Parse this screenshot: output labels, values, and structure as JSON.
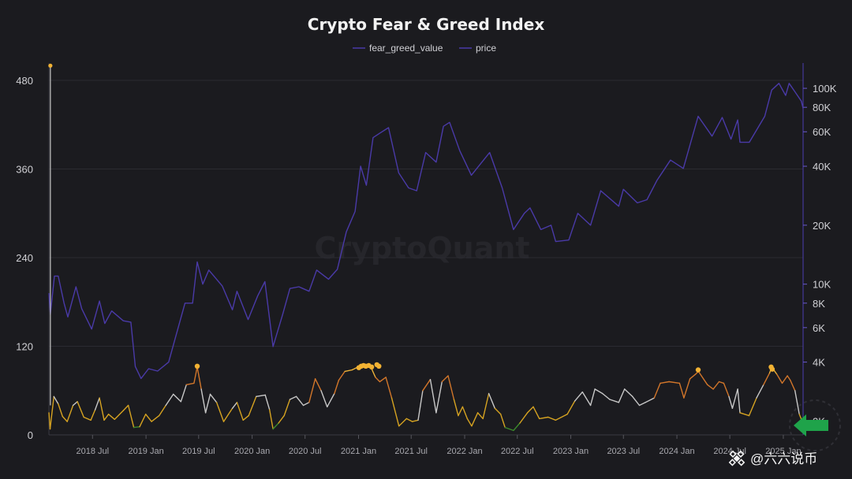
{
  "chart_data": {
    "type": "line",
    "title": "Crypto Fear & Greed Index",
    "watermark": "CryptoQuant",
    "legend": {
      "placement": "top-center"
    },
    "series": [
      {
        "name": "fear_greed_value",
        "axis": "left",
        "color_scale": [
          "#3c8a2c",
          "#d6a321",
          "#c8c8c8",
          "#d2762a",
          "#f0b53a"
        ]
      },
      {
        "name": "price",
        "axis": "right",
        "color": "#4a3aa8"
      }
    ],
    "left_axis": {
      "ticks": [
        "0",
        "120",
        "240",
        "360",
        "480"
      ],
      "ylim": [
        0,
        495
      ]
    },
    "right_axis": {
      "scale": "log",
      "ticks": [
        "2K",
        "4K",
        "6K",
        "8K",
        "10K",
        "20K",
        "40K",
        "60K",
        "80K",
        "100K"
      ],
      "ylim": [
        1700,
        125000
      ]
    },
    "x_axis": {
      "xlim": [
        "2018-02-01",
        "2025-03-10"
      ],
      "ticks": [
        "2018 Jul",
        "2019 Jan",
        "2019 Jul",
        "2020 Jan",
        "2020 Jul",
        "2021 Jan",
        "2021 Jul",
        "2022 Jan",
        "2022 Jul",
        "2023 Jan",
        "2023 Jul",
        "2024 Jan",
        "2024 Jul",
        "2025 Jan"
      ]
    },
    "price_points": [
      [
        "2018-02-01",
        9000
      ],
      [
        "2018-02-06",
        7000
      ],
      [
        "2018-02-20",
        11000
      ],
      [
        "2018-03-05",
        11000
      ],
      [
        "2018-03-25",
        8000
      ],
      [
        "2018-04-07",
        6800
      ],
      [
        "2018-05-05",
        9700
      ],
      [
        "2018-05-25",
        7500
      ],
      [
        "2018-06-28",
        5900
      ],
      [
        "2018-07-25",
        8200
      ],
      [
        "2018-08-12",
        6300
      ],
      [
        "2018-09-05",
        7300
      ],
      [
        "2018-10-15",
        6500
      ],
      [
        "2018-11-10",
        6400
      ],
      [
        "2018-11-25",
        3800
      ],
      [
        "2018-12-15",
        3300
      ],
      [
        "2019-01-10",
        3700
      ],
      [
        "2019-02-10",
        3600
      ],
      [
        "2019-03-20",
        4000
      ],
      [
        "2019-04-10",
        5200
      ],
      [
        "2019-05-15",
        8000
      ],
      [
        "2019-06-10",
        8000
      ],
      [
        "2019-06-26",
        13000
      ],
      [
        "2019-07-15",
        10000
      ],
      [
        "2019-08-05",
        11800
      ],
      [
        "2019-09-20",
        9800
      ],
      [
        "2019-10-25",
        7400
      ],
      [
        "2019-11-10",
        9200
      ],
      [
        "2019-12-18",
        6600
      ],
      [
        "2020-01-20",
        8700
      ],
      [
        "2020-02-14",
        10300
      ],
      [
        "2020-03-13",
        4800
      ],
      [
        "2020-04-15",
        7000
      ],
      [
        "2020-05-10",
        9500
      ],
      [
        "2020-06-10",
        9700
      ],
      [
        "2020-07-15",
        9200
      ],
      [
        "2020-08-10",
        11800
      ],
      [
        "2020-09-20",
        10600
      ],
      [
        "2020-10-20",
        11900
      ],
      [
        "2020-11-20",
        18500
      ],
      [
        "2020-12-20",
        23500
      ],
      [
        "2021-01-08",
        40000
      ],
      [
        "2021-01-28",
        32000
      ],
      [
        "2021-02-20",
        56000
      ],
      [
        "2021-03-15",
        59000
      ],
      [
        "2021-04-14",
        63000
      ],
      [
        "2021-05-19",
        37000
      ],
      [
        "2021-06-22",
        31000
      ],
      [
        "2021-07-20",
        30000
      ],
      [
        "2021-08-20",
        47000
      ],
      [
        "2021-09-25",
        42000
      ],
      [
        "2021-10-20",
        64000
      ],
      [
        "2021-11-10",
        67000
      ],
      [
        "2021-12-15",
        48000
      ],
      [
        "2022-01-24",
        36000
      ],
      [
        "2022-03-28",
        47000
      ],
      [
        "2022-05-10",
        31000
      ],
      [
        "2022-06-18",
        19000
      ],
      [
        "2022-07-25",
        23000
      ],
      [
        "2022-08-14",
        24500
      ],
      [
        "2022-09-20",
        19000
      ],
      [
        "2022-10-25",
        20000
      ],
      [
        "2022-11-10",
        16500
      ],
      [
        "2022-12-25",
        16800
      ],
      [
        "2023-01-25",
        23000
      ],
      [
        "2023-03-10",
        20000
      ],
      [
        "2023-04-14",
        30000
      ],
      [
        "2023-06-15",
        25000
      ],
      [
        "2023-07-01",
        30500
      ],
      [
        "2023-08-18",
        26000
      ],
      [
        "2023-09-20",
        27000
      ],
      [
        "2023-10-25",
        34000
      ],
      [
        "2023-12-10",
        43000
      ],
      [
        "2024-01-23",
        39000
      ],
      [
        "2024-03-14",
        72000
      ],
      [
        "2024-05-01",
        57000
      ],
      [
        "2024-06-05",
        71000
      ],
      [
        "2024-07-05",
        55000
      ],
      [
        "2024-07-28",
        69000
      ],
      [
        "2024-08-05",
        53000
      ],
      [
        "2024-09-06",
        53000
      ],
      [
        "2024-10-29",
        72000
      ],
      [
        "2024-11-22",
        98000
      ],
      [
        "2024-12-17",
        106000
      ],
      [
        "2025-01-09",
        92000
      ],
      [
        "2025-01-21",
        106000
      ],
      [
        "2025-02-10",
        96000
      ],
      [
        "2025-03-04",
        86000
      ],
      [
        "2025-03-10",
        79000
      ]
    ],
    "fear_greed_points": [
      [
        "2018-02-01",
        30
      ],
      [
        "2018-02-05",
        8
      ],
      [
        "2018-02-18",
        52
      ],
      [
        "2018-03-05",
        42
      ],
      [
        "2018-03-20",
        25
      ],
      [
        "2018-04-05",
        18
      ],
      [
        "2018-04-25",
        40
      ],
      [
        "2018-05-10",
        45
      ],
      [
        "2018-06-01",
        24
      ],
      [
        "2018-06-25",
        20
      ],
      [
        "2018-07-10",
        34
      ],
      [
        "2018-07-25",
        50
      ],
      [
        "2018-08-10",
        20
      ],
      [
        "2018-08-25",
        28
      ],
      [
        "2018-09-15",
        21
      ],
      [
        "2018-10-15",
        33
      ],
      [
        "2018-11-01",
        40
      ],
      [
        "2018-11-20",
        10
      ],
      [
        "2018-12-10",
        11
      ],
      [
        "2018-12-31",
        28
      ],
      [
        "2019-01-20",
        18
      ],
      [
        "2019-02-15",
        26
      ],
      [
        "2019-03-10",
        40
      ],
      [
        "2019-04-05",
        55
      ],
      [
        "2019-05-01",
        45
      ],
      [
        "2019-05-20",
        68
      ],
      [
        "2019-06-15",
        70
      ],
      [
        "2019-06-26",
        92
      ],
      [
        "2019-07-10",
        62
      ],
      [
        "2019-07-25",
        30
      ],
      [
        "2019-08-10",
        55
      ],
      [
        "2019-09-01",
        44
      ],
      [
        "2019-09-25",
        18
      ],
      [
        "2019-10-25",
        36
      ],
      [
        "2019-11-10",
        44
      ],
      [
        "2019-12-01",
        20
      ],
      [
        "2019-12-20",
        26
      ],
      [
        "2020-01-15",
        52
      ],
      [
        "2020-02-15",
        54
      ],
      [
        "2020-03-01",
        34
      ],
      [
        "2020-03-13",
        8
      ],
      [
        "2020-04-01",
        16
      ],
      [
        "2020-04-20",
        26
      ],
      [
        "2020-05-10",
        48
      ],
      [
        "2020-06-01",
        52
      ],
      [
        "2020-06-25",
        40
      ],
      [
        "2020-07-15",
        44
      ],
      [
        "2020-08-05",
        76
      ],
      [
        "2020-08-25",
        60
      ],
      [
        "2020-09-15",
        38
      ],
      [
        "2020-10-10",
        56
      ],
      [
        "2020-10-25",
        74
      ],
      [
        "2020-11-15",
        86
      ],
      [
        "2020-12-10",
        88
      ],
      [
        "2021-01-05",
        93
      ],
      [
        "2021-01-20",
        94
      ],
      [
        "2021-02-10",
        94
      ],
      [
        "2021-02-28",
        78
      ],
      [
        "2021-03-15",
        72
      ],
      [
        "2021-04-05",
        78
      ],
      [
        "2021-04-25",
        50
      ],
      [
        "2021-05-20",
        12
      ],
      [
        "2021-06-15",
        22
      ],
      [
        "2021-07-05",
        18
      ],
      [
        "2021-07-25",
        20
      ],
      [
        "2021-08-10",
        60
      ],
      [
        "2021-09-05",
        75
      ],
      [
        "2021-09-25",
        30
      ],
      [
        "2021-10-15",
        72
      ],
      [
        "2021-11-05",
        80
      ],
      [
        "2021-11-25",
        48
      ],
      [
        "2021-12-10",
        26
      ],
      [
        "2021-12-25",
        38
      ],
      [
        "2022-01-10",
        22
      ],
      [
        "2022-01-25",
        12
      ],
      [
        "2022-02-15",
        30
      ],
      [
        "2022-03-05",
        22
      ],
      [
        "2022-03-25",
        56
      ],
      [
        "2022-04-15",
        36
      ],
      [
        "2022-05-05",
        28
      ],
      [
        "2022-05-20",
        10
      ],
      [
        "2022-06-18",
        6
      ],
      [
        "2022-07-10",
        16
      ],
      [
        "2022-08-05",
        30
      ],
      [
        "2022-08-25",
        38
      ],
      [
        "2022-09-15",
        22
      ],
      [
        "2022-10-15",
        24
      ],
      [
        "2022-11-10",
        20
      ],
      [
        "2022-12-20",
        28
      ],
      [
        "2023-01-15",
        46
      ],
      [
        "2023-02-10",
        58
      ],
      [
        "2023-03-10",
        40
      ],
      [
        "2023-03-25",
        62
      ],
      [
        "2023-04-20",
        56
      ],
      [
        "2023-05-15",
        48
      ],
      [
        "2023-06-15",
        44
      ],
      [
        "2023-07-05",
        62
      ],
      [
        "2023-08-01",
        52
      ],
      [
        "2023-08-25",
        40
      ],
      [
        "2023-09-15",
        44
      ],
      [
        "2023-10-15",
        50
      ],
      [
        "2023-11-05",
        70
      ],
      [
        "2023-12-05",
        72
      ],
      [
        "2024-01-10",
        70
      ],
      [
        "2024-01-25",
        50
      ],
      [
        "2024-02-15",
        76
      ],
      [
        "2024-03-05",
        82
      ],
      [
        "2024-03-15",
        86
      ],
      [
        "2024-04-15",
        68
      ],
      [
        "2024-05-05",
        62
      ],
      [
        "2024-05-25",
        72
      ],
      [
        "2024-06-10",
        70
      ],
      [
        "2024-06-28",
        52
      ],
      [
        "2024-07-10",
        36
      ],
      [
        "2024-07-28",
        62
      ],
      [
        "2024-08-05",
        30
      ],
      [
        "2024-09-05",
        26
      ],
      [
        "2024-10-01",
        50
      ],
      [
        "2024-10-25",
        68
      ],
      [
        "2024-11-15",
        84
      ],
      [
        "2024-11-22",
        92
      ],
      [
        "2024-12-10",
        82
      ],
      [
        "2024-12-28",
        70
      ],
      [
        "2025-01-15",
        80
      ],
      [
        "2025-01-25",
        74
      ],
      [
        "2025-02-10",
        60
      ],
      [
        "2025-02-25",
        28
      ],
      [
        "2025-03-05",
        20
      ],
      [
        "2025-03-10",
        18
      ]
    ],
    "spike_points": [
      {
        "x": "2018-02-06",
        "y": 500
      }
    ],
    "extreme_points": [
      {
        "x": "2019-06-26",
        "y": 93
      },
      {
        "x": "2021-01-02",
        "y": 91
      },
      {
        "x": "2021-01-10",
        "y": 93
      },
      {
        "x": "2021-01-18",
        "y": 94
      },
      {
        "x": "2021-01-26",
        "y": 93
      },
      {
        "x": "2021-02-05",
        "y": 94
      },
      {
        "x": "2021-02-15",
        "y": 92
      },
      {
        "x": "2021-03-05",
        "y": 95
      },
      {
        "x": "2021-03-12",
        "y": 93
      },
      {
        "x": "2024-03-14",
        "y": 88
      },
      {
        "x": "2024-11-20",
        "y": 92
      },
      {
        "x": "2024-11-24",
        "y": 89
      }
    ]
  },
  "brand": {
    "label": "@六六说币"
  },
  "colors": {
    "background": "#1b1b1f",
    "grid": "#2e2e34",
    "price_line": "#4a3aa8",
    "arrow": "#1fa34a",
    "marker": "#f2b233"
  }
}
